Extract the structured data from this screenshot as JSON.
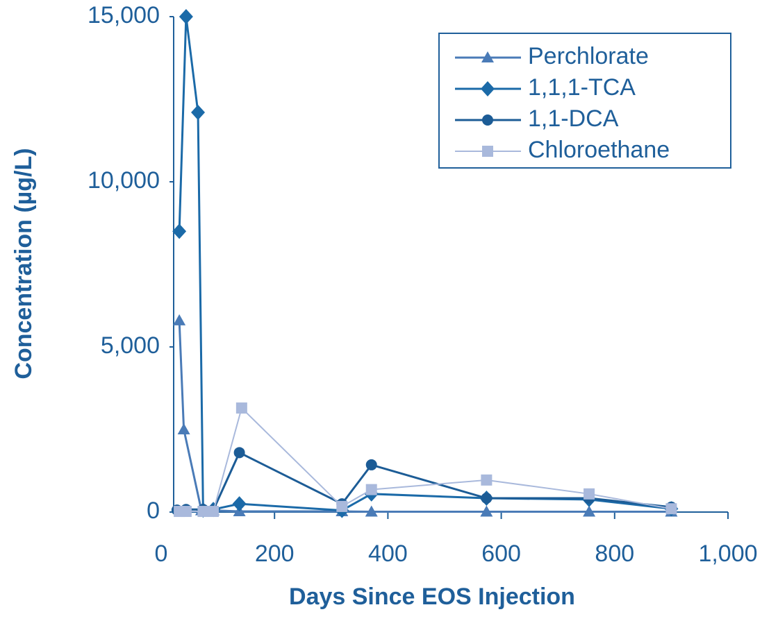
{
  "chart_data": {
    "type": "line",
    "x_label": "Days Since EOS Injection",
    "y_label": "Concentration (µg/L)",
    "xlim": [
      0,
      1000
    ],
    "xticks": [
      0,
      200,
      400,
      600,
      800,
      {
        "value": 1000,
        "label": "1,000"
      }
    ],
    "ylim": [
      0,
      15000
    ],
    "yticks": [
      0,
      {
        "value": 5000,
        "label": "5,000"
      },
      {
        "value": 10000,
        "label": "10,000"
      },
      {
        "value": 15000,
        "label": "15,000"
      }
    ],
    "legend": "upper right",
    "series": [
      {
        "name": "Perchlorate",
        "color": "#4a7bb7",
        "marker": "triangle",
        "x": [
          32,
          40,
          71,
          92,
          138,
          319,
          371,
          574,
          755,
          900
        ],
        "values": [
          5800,
          2500,
          50,
          50,
          20,
          20,
          10,
          10,
          10,
          10
        ]
      },
      {
        "name": "1,1,1-TCA",
        "color": "#1b6aa8",
        "marker": "diamond",
        "x": [
          32,
          44,
          65,
          74,
          92,
          138,
          319,
          371,
          574,
          755,
          900
        ],
        "values": [
          8500,
          15000,
          12100,
          60,
          80,
          250,
          50,
          550,
          420,
          380,
          100
        ]
      },
      {
        "name": "1,1-DCA",
        "color": "#1c5c96",
        "marker": "circle",
        "x": [
          28,
          44,
          74,
          92,
          138,
          319,
          371,
          574,
          755,
          900
        ],
        "values": [
          60,
          80,
          80,
          60,
          1800,
          250,
          1430,
          420,
          420,
          150
        ]
      },
      {
        "name": "Chloroethane",
        "color": "#a9b9dc",
        "marker": "square",
        "x": [
          32,
          44,
          74,
          92,
          142,
          319,
          371,
          574,
          755,
          900
        ],
        "values": [
          20,
          20,
          20,
          20,
          3150,
          170,
          680,
          970,
          550,
          100
        ]
      }
    ]
  }
}
